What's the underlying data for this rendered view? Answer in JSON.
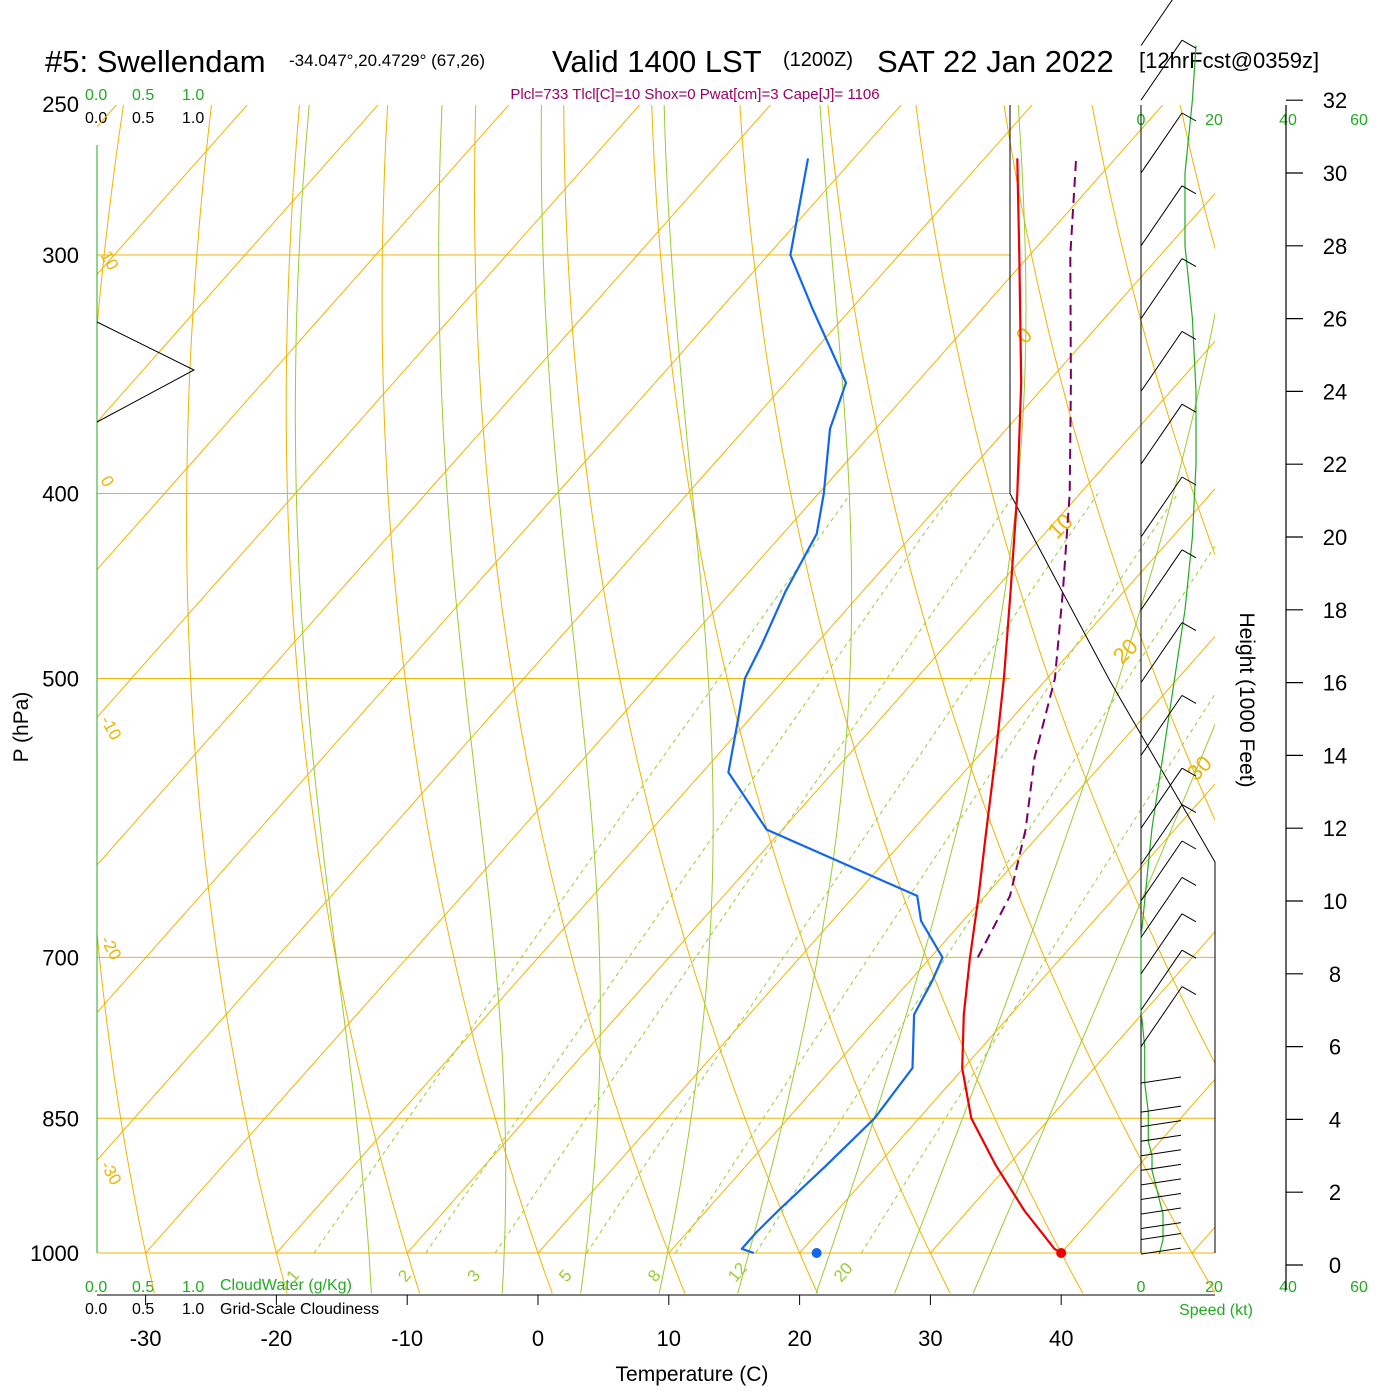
{
  "title": {
    "station": "#5: Swellendam",
    "coords": "-34.047°,20.4729° (67,26)",
    "valid": "Valid 1400 LST",
    "zulu": "(1200Z)",
    "date": "SAT 22 Jan 2022",
    "forecast": "[12hrFcst@0359z]"
  },
  "indices": "Plcl=733 Tlcl[C]=10 Shox=0 Pwat[cm]=3 Cape[J]= 1106",
  "cloud_scale": {
    "green": [
      "0.0",
      "0.5",
      "1.0"
    ],
    "black": [
      "0.0",
      "0.5",
      "1.0"
    ],
    "cloudwater_label": "CloudWater (g/Kg)",
    "cloudiness_label": "Grid-Scale Cloudiness"
  },
  "speed_axis": {
    "ticks": [
      "0",
      "20",
      "40",
      "60"
    ],
    "label": "Speed (kt)"
  },
  "colors": {
    "isobar": "#f0b400",
    "isotherm": "#f0b400",
    "dry_adiabat": "#f0b400",
    "moist_adiabat": "#99cc33",
    "mixing_ratio": "#99cc33",
    "temperature": "#ee0000",
    "dewpoint": "#1166ee",
    "parcel": "#770066",
    "speed": "#22aa22"
  },
  "isotherm_labels": [
    "10",
    "0",
    "-10",
    "-20",
    "-30"
  ],
  "adiabat_labels": [
    "0",
    "10",
    "20",
    "30"
  ],
  "mixing_ratio_labels": [
    "1",
    "2",
    "3",
    "5",
    "8",
    "12",
    "20"
  ],
  "chart_data": {
    "type": "line",
    "subtype": "skew-T log-P sounding",
    "xlabel": "Temperature (C)",
    "ylabel": "P (hPa)",
    "y2label": "Height (1000 Feet)",
    "x_ticks": [
      -30,
      -20,
      -10,
      0,
      10,
      20,
      30,
      40
    ],
    "y_ticks": [
      250,
      300,
      400,
      500,
      700,
      850,
      1000
    ],
    "y2_ticks": [
      0,
      2,
      4,
      6,
      8,
      10,
      12,
      14,
      16,
      18,
      20,
      22,
      24,
      26,
      28,
      30,
      32
    ],
    "y_scale": "log",
    "ylim": [
      1000,
      250
    ],
    "series": [
      {
        "name": "Temperature",
        "points": [
          [
            1000,
            40.0
          ],
          [
            995,
            39.2
          ],
          [
            950,
            34.3
          ],
          [
            900,
            29.1
          ],
          [
            850,
            24.0
          ],
          [
            800,
            19.9
          ],
          [
            750,
            16.4
          ],
          [
            700,
            13.0
          ],
          [
            650,
            9.5
          ],
          [
            600,
            5.6
          ],
          [
            550,
            1.4
          ],
          [
            500,
            -3.3
          ],
          [
            450,
            -8.7
          ],
          [
            400,
            -14.8
          ],
          [
            350,
            -22.0
          ],
          [
            300,
            -30.8
          ],
          [
            267,
            -37.5
          ]
        ]
      },
      {
        "name": "Dewpoint",
        "points": [
          [
            1000,
            16.5
          ],
          [
            995,
            15.3
          ],
          [
            975,
            15.3
          ],
          [
            950,
            15.5
          ],
          [
            900,
            16.1
          ],
          [
            850,
            16.6
          ],
          [
            800,
            16.1
          ],
          [
            750,
            12.6
          ],
          [
            720,
            11.7
          ],
          [
            700,
            10.9
          ],
          [
            670,
            6.8
          ],
          [
            650,
            4.8
          ],
          [
            600,
            -11.2
          ],
          [
            560,
            -18.0
          ],
          [
            520,
            -21.3
          ],
          [
            500,
            -23.1
          ],
          [
            480,
            -24.1
          ],
          [
            450,
            -25.9
          ],
          [
            420,
            -27.4
          ],
          [
            400,
            -29.6
          ],
          [
            370,
            -33.5
          ],
          [
            350,
            -35.4
          ],
          [
            320,
            -43.0
          ],
          [
            300,
            -48.3
          ],
          [
            267,
            -53.5
          ]
        ]
      },
      {
        "name": "Parcel",
        "points": [
          [
            700,
            13.6
          ],
          [
            650,
            11.9
          ],
          [
            600,
            8.6
          ],
          [
            550,
            4.4
          ],
          [
            500,
            0.6
          ],
          [
            450,
            -4.7
          ],
          [
            400,
            -10.8
          ],
          [
            350,
            -18.2
          ],
          [
            300,
            -26.9
          ],
          [
            267,
            -33.0
          ]
        ]
      },
      {
        "name": "Surface points",
        "points": [
          [
            1000,
            40.0
          ],
          [
            1000,
            21.3
          ]
        ]
      }
    ],
    "wind_profile": {
      "height_kft": [
        0.3,
        0.7,
        1.0,
        1.4,
        1.8,
        2.2,
        2.6,
        3.0,
        3.4,
        3.8,
        4.2,
        5.0,
        6.0,
        7.0,
        8.0,
        9.0,
        10.0,
        11.0,
        12.0,
        14.0,
        16.0,
        18.0,
        20.0,
        22.0,
        24.0,
        26.0,
        28.0,
        30.0,
        32.0,
        33.5
      ],
      "speed_kt": [
        5,
        6,
        6,
        6,
        5,
        4,
        3,
        3,
        2,
        2,
        2,
        1,
        1,
        0,
        0,
        0,
        1,
        2,
        3,
        6,
        9,
        12,
        14,
        15,
        15,
        14,
        12,
        12,
        14,
        15
      ]
    }
  }
}
